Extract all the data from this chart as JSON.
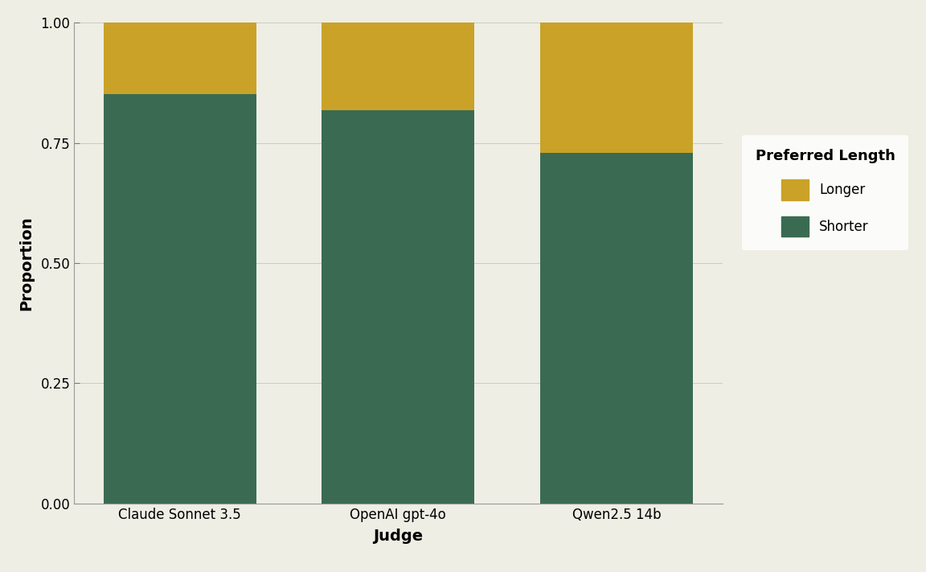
{
  "judges": [
    "Claude Sonnet 3.5",
    "OpenAI gpt-4o",
    "Qwen2.5 14b"
  ],
  "shorter": [
    0.852,
    0.818,
    0.73
  ],
  "longer": [
    0.148,
    0.182,
    0.27
  ],
  "color_shorter": "#3A6B52",
  "color_longer": "#C9A227",
  "background_color": "#EEEEE5",
  "panel_background": "#EEEEE5",
  "xlabel": "Judge",
  "ylabel": "Proportion",
  "legend_title": "Preferred Length",
  "ylim": [
    0,
    1.0
  ],
  "yticks": [
    0.0,
    0.25,
    0.5,
    0.75,
    1.0
  ],
  "bar_width": 0.7,
  "figsize": [
    11.52,
    7.11
  ],
  "dpi": 100
}
